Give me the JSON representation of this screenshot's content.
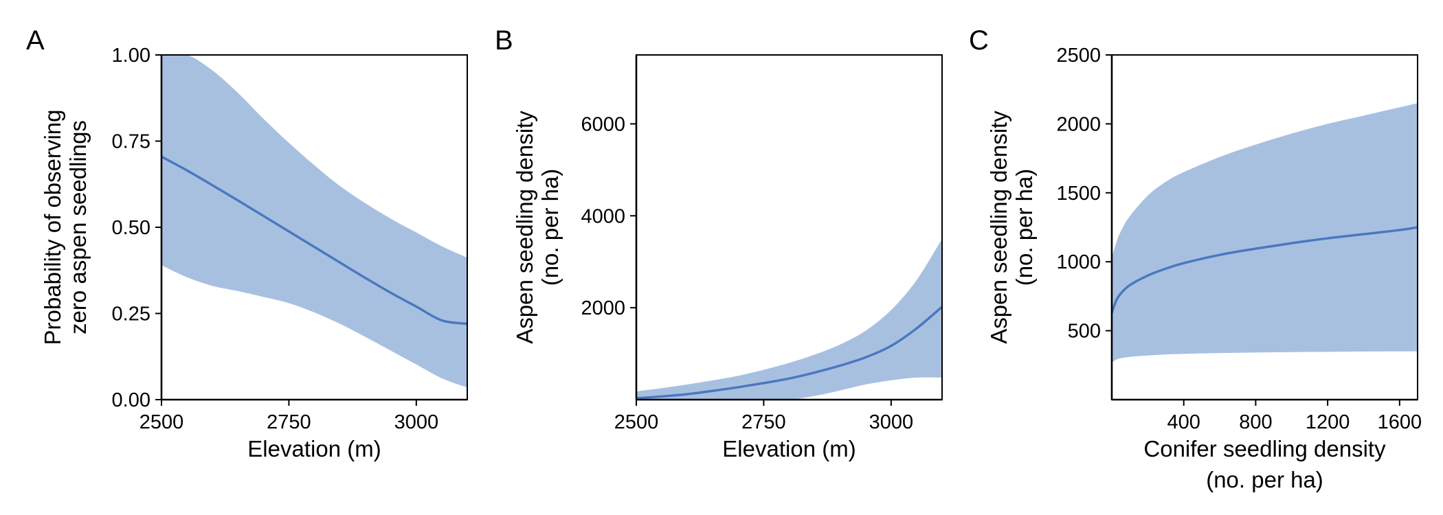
{
  "colors": {
    "band": "#a8c0e0",
    "line": "#4a78c0"
  },
  "chart_data": [
    {
      "panel": "A",
      "type": "line",
      "ylabel_lines": [
        "Probability of observing",
        "zero aspen seedlings"
      ],
      "xlabel_lines": [
        "Elevation (m)"
      ],
      "xlim": [
        2500,
        3100
      ],
      "ylim": [
        0,
        1
      ],
      "xticks": [
        2500,
        2750,
        3000
      ],
      "xtick_labels": [
        "2500",
        "2750",
        "3000"
      ],
      "yticks": [
        0,
        0.25,
        0.5,
        0.75,
        1.0
      ],
      "ytick_labels": [
        "0.00",
        "0.25",
        "0.50",
        "0.75",
        "1.00"
      ],
      "x": [
        2500,
        2550,
        2600,
        2650,
        2700,
        2750,
        2800,
        2850,
        2900,
        2950,
        3000,
        3050,
        3100
      ],
      "series": [
        {
          "y": [
            0.705,
            0.665,
            0.622,
            0.578,
            0.533,
            0.488,
            0.443,
            0.398,
            0.353,
            0.31,
            0.27,
            0.23,
            0.22
          ]
        }
      ],
      "ci_lower": [
        0.39,
        0.355,
        0.33,
        0.315,
        0.298,
        0.28,
        0.253,
        0.22,
        0.182,
        0.142,
        0.102,
        0.062,
        0.035
      ],
      "ci_upper": [
        1.0,
        1.0,
        0.955,
        0.89,
        0.815,
        0.745,
        0.68,
        0.62,
        0.57,
        0.525,
        0.485,
        0.445,
        0.412
      ]
    },
    {
      "panel": "B",
      "type": "line",
      "ylabel_lines": [
        "Aspen seedling density",
        "(no. per ha)"
      ],
      "xlabel_lines": [
        "Elevation (m)"
      ],
      "xlim": [
        2500,
        3100
      ],
      "ylim": [
        0,
        7500
      ],
      "xticks": [
        2500,
        2750,
        3000
      ],
      "xtick_labels": [
        "2500",
        "2750",
        "3000"
      ],
      "yticks": [
        2000,
        4000,
        6000
      ],
      "ytick_labels": [
        "2000",
        "4000",
        "6000"
      ],
      "x": [
        2500,
        2550,
        2600,
        2650,
        2700,
        2750,
        2800,
        2850,
        2900,
        2950,
        3000,
        3050,
        3100
      ],
      "series": [
        {
          "y": [
            30,
            70,
            120,
            190,
            270,
            360,
            460,
            590,
            740,
            920,
            1170,
            1550,
            2020
          ]
        }
      ],
      "ci_lower": [
        0,
        0,
        0,
        0,
        0,
        0,
        0,
        80,
        200,
        330,
        420,
        480,
        480
      ],
      "ci_upper": [
        180,
        250,
        330,
        420,
        520,
        650,
        800,
        980,
        1200,
        1500,
        1950,
        2600,
        3500
      ]
    },
    {
      "panel": "C",
      "type": "line",
      "ylabel_lines": [
        "Aspen seedling density",
        "(no. per ha)"
      ],
      "xlabel_lines": [
        "Conifer seedling density",
        "(no. per ha)"
      ],
      "xlim": [
        0,
        1700
      ],
      "ylim": [
        0,
        2500
      ],
      "xticks": [
        400,
        800,
        1200,
        1600
      ],
      "xtick_labels": [
        "400",
        "800",
        "1200",
        "1600"
      ],
      "yticks": [
        500,
        1000,
        1500,
        2000,
        2500
      ],
      "ytick_labels": [
        "500",
        "1000",
        "1500",
        "2000",
        "2500"
      ],
      "x": [
        0,
        25,
        50,
        100,
        200,
        300,
        400,
        600,
        800,
        1000,
        1200,
        1400,
        1600,
        1700
      ],
      "series": [
        {
          "y": [
            630,
            720,
            770,
            830,
            900,
            950,
            990,
            1050,
            1095,
            1135,
            1170,
            1200,
            1230,
            1250
          ]
        }
      ],
      "ci_lower": [
        270,
        290,
        300,
        310,
        320,
        328,
        332,
        338,
        342,
        345,
        347,
        349,
        350,
        350
      ],
      "ci_upper": [
        1030,
        1140,
        1220,
        1330,
        1480,
        1580,
        1650,
        1760,
        1850,
        1930,
        2000,
        2060,
        2120,
        2150
      ]
    }
  ]
}
